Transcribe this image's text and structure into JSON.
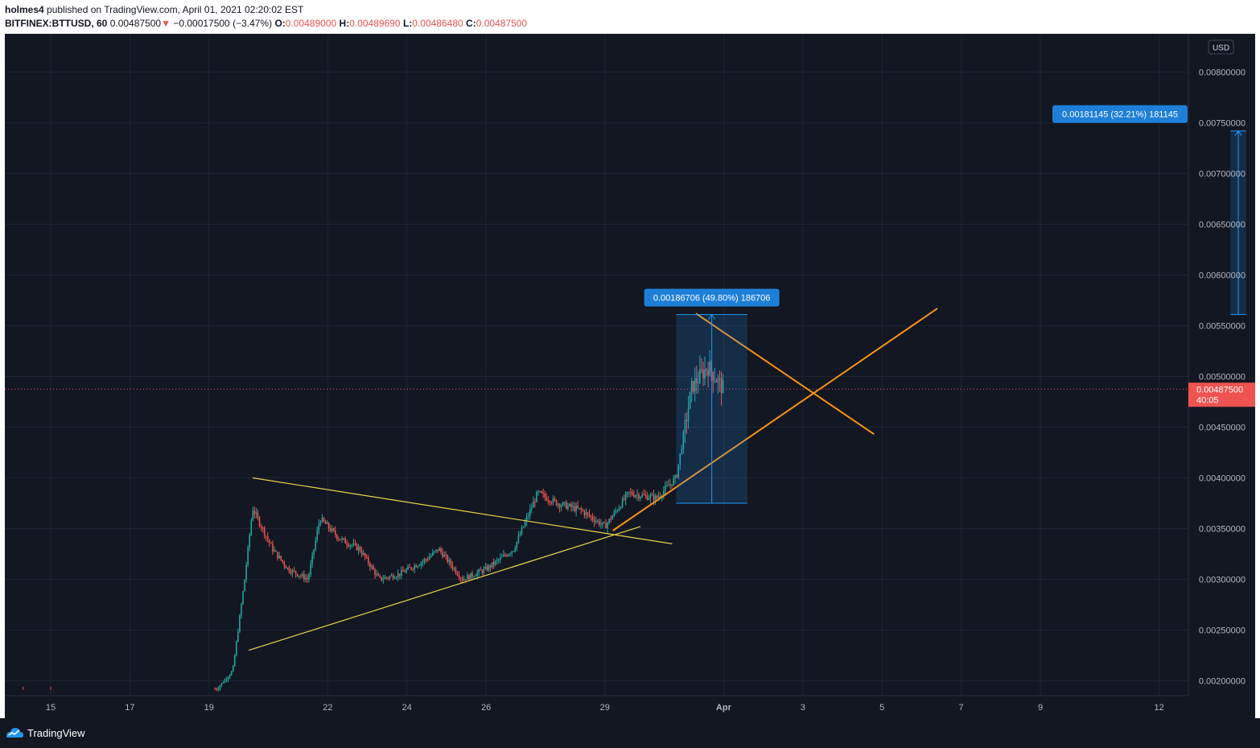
{
  "header": {
    "publisher": "holmes4",
    "published_text": "published on TradingView.com, April 01, 2021 02:20:02 EST",
    "symbol": "BITFINEX:BTTUSD, 60",
    "last": "0.00487500",
    "change": "−0.00017500 (−3.47%)",
    "o_label": "O:",
    "o_value": "0.00489000",
    "h_label": "H:",
    "h_value": "0.00489690",
    "l_label": "L:",
    "l_value": "0.00486480",
    "c_label": "C:",
    "c_value": "0.00487500"
  },
  "footer": {
    "brand": "TradingView"
  },
  "colors": {
    "background": "#131722",
    "grid": "#1f2433",
    "up": "#26a69a",
    "down": "#ef5350",
    "trend_yellow": "#e8d44d",
    "trend_orange": "#f7931a",
    "measure": "#2196f3"
  },
  "chart_data": {
    "type": "candlestick",
    "currency": "USD",
    "ylim": [
      0.0019,
      0.0083
    ],
    "y_ticks": [
      "0.00200000",
      "0.00250000",
      "0.00300000",
      "0.00350000",
      "0.00400000",
      "0.00450000",
      "0.00500000",
      "0.00550000",
      "0.00600000",
      "0.00650000",
      "0.00700000",
      "0.00750000",
      "0.00800000"
    ],
    "x_ticks": [
      {
        "day": 15,
        "label": "15"
      },
      {
        "day": 17,
        "label": "17"
      },
      {
        "day": 19,
        "label": "19"
      },
      {
        "day": 22,
        "label": "22"
      },
      {
        "day": 24,
        "label": "24"
      },
      {
        "day": 26,
        "label": "26"
      },
      {
        "day": 29,
        "label": "29"
      },
      {
        "day": 32,
        "label": "Apr"
      },
      {
        "day": 34,
        "label": "3"
      },
      {
        "day": 36,
        "label": "5"
      },
      {
        "day": 38,
        "label": "7"
      },
      {
        "day": 40,
        "label": "9"
      },
      {
        "day": 43,
        "label": "12"
      }
    ],
    "price_path": [
      [
        14.3,
        0.00192
      ],
      [
        19.2,
        0.00192
      ],
      [
        19.6,
        0.0021
      ],
      [
        19.9,
        0.003
      ],
      [
        20.1,
        0.0037
      ],
      [
        20.6,
        0.0033
      ],
      [
        21.0,
        0.0031
      ],
      [
        21.5,
        0.003
      ],
      [
        21.8,
        0.0036
      ],
      [
        22.3,
        0.0034
      ],
      [
        22.8,
        0.0033
      ],
      [
        23.3,
        0.003
      ],
      [
        23.8,
        0.00305
      ],
      [
        24.5,
        0.0032
      ],
      [
        24.8,
        0.0033
      ],
      [
        25.4,
        0.003
      ],
      [
        26.0,
        0.0031
      ],
      [
        26.7,
        0.0033
      ],
      [
        27.3,
        0.00385
      ],
      [
        27.8,
        0.00375
      ],
      [
        28.4,
        0.00368
      ],
      [
        29.0,
        0.00352
      ],
      [
        29.6,
        0.00385
      ],
      [
        30.3,
        0.0038
      ],
      [
        30.8,
        0.004
      ],
      [
        31.2,
        0.0049
      ],
      [
        31.6,
        0.0051
      ],
      [
        32.0,
        0.00487
      ]
    ],
    "current_price": "0.00487500",
    "countdown": "40:05",
    "trendlines": [
      {
        "color": "yellow",
        "from": [
          20.1,
          0.004
        ],
        "to": [
          30.7,
          0.00335
        ]
      },
      {
        "color": "yellow",
        "from": [
          20.0,
          0.0023
        ],
        "to": [
          29.9,
          0.00352
        ]
      },
      {
        "color": "orange",
        "from": [
          29.2,
          0.00348
        ],
        "to": [
          37.4,
          0.00567
        ]
      },
      {
        "color": "orange",
        "from": [
          31.3,
          0.00562
        ],
        "to": [
          35.8,
          0.00443
        ]
      }
    ],
    "measures": [
      {
        "label": "0.00186706 (49.80%) 186706",
        "x_from": 30.8,
        "x_to": 32.6,
        "y_from": 0.00375,
        "y_to": 0.00561
      },
      {
        "label": "0.00181145 (32.21%) 181145",
        "x_from": 44.8,
        "x_to": 45.2,
        "y_from": 0.00561,
        "y_to": 0.00742
      }
    ]
  }
}
